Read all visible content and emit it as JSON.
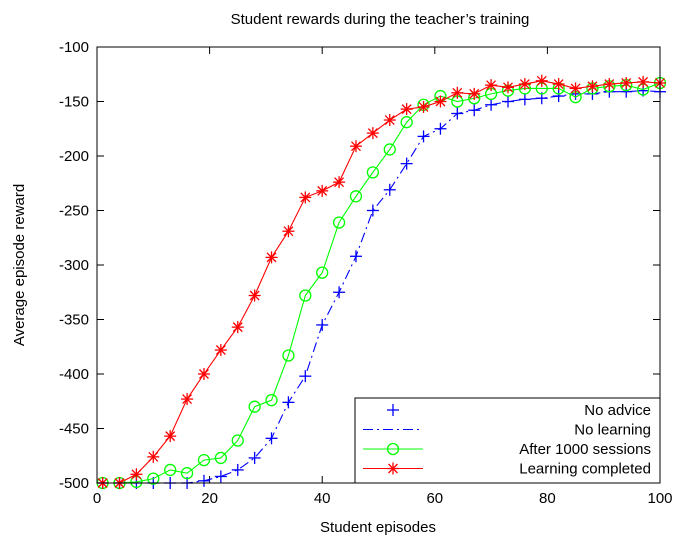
{
  "chart_data": {
    "type": "line",
    "title": "Student rewards during the teacher’s training",
    "xlabel": "Student episodes",
    "ylabel": "Average episode reward",
    "xlim": [
      0,
      100
    ],
    "ylim": [
      -500,
      -100
    ],
    "xticks": [
      0,
      20,
      40,
      60,
      80,
      100
    ],
    "yticks": [
      -100,
      -150,
      -200,
      -250,
      -300,
      -350,
      -400,
      -450,
      -500
    ],
    "legend_position": "bottom-right",
    "series": [
      {
        "name": "No advice",
        "color": "#0000ff",
        "marker": "plus",
        "line": "none",
        "x": [
          1,
          4,
          7,
          10,
          13,
          16,
          19,
          22,
          25,
          28,
          31,
          34,
          37,
          40,
          43,
          46,
          49,
          52,
          55,
          58,
          61,
          64,
          67,
          70,
          73,
          76,
          79,
          82,
          85,
          88,
          91,
          94,
          97,
          100
        ],
        "y": [
          -500,
          -500,
          -500,
          -500,
          -500,
          -500,
          -498,
          -494,
          -488,
          -477,
          -459,
          -426,
          -402,
          -355,
          -325,
          -292,
          -250,
          -231,
          -207,
          -182,
          -175,
          -161,
          -158,
          -153,
          -150,
          -148,
          -147,
          -145,
          -143,
          -143,
          -141,
          -141,
          -140,
          -141
        ]
      },
      {
        "name": "No learning",
        "color": "#0000ff",
        "marker": "none",
        "line": "dashdot",
        "x": [
          1,
          4,
          7,
          10,
          13,
          16,
          19,
          22,
          25,
          28,
          31,
          34,
          37,
          40,
          43,
          46,
          49,
          52,
          55,
          58,
          61,
          64,
          67,
          70,
          73,
          76,
          79,
          82,
          85,
          88,
          91,
          94,
          97,
          100
        ],
        "y": [
          -500,
          -500,
          -500,
          -500,
          -500,
          -500,
          -498,
          -494,
          -488,
          -477,
          -459,
          -426,
          -402,
          -355,
          -325,
          -292,
          -250,
          -231,
          -207,
          -182,
          -175,
          -161,
          -158,
          -153,
          -150,
          -148,
          -147,
          -145,
          -143,
          -143,
          -141,
          -141,
          -140,
          -141
        ]
      },
      {
        "name": "After 1000 sessions",
        "color": "#00ff00",
        "marker": "circle",
        "line": "solid",
        "x": [
          1,
          4,
          7,
          10,
          13,
          16,
          19,
          22,
          25,
          28,
          31,
          34,
          37,
          40,
          43,
          46,
          49,
          52,
          55,
          58,
          61,
          64,
          67,
          70,
          73,
          76,
          79,
          82,
          85,
          88,
          91,
          94,
          97,
          100
        ],
        "y": [
          -500,
          -500,
          -499,
          -496,
          -488,
          -491,
          -479,
          -477,
          -461,
          -430,
          -424,
          -383,
          -328,
          -307,
          -261,
          -237,
          -215,
          -194,
          -169,
          -153,
          -145,
          -150,
          -147,
          -143,
          -140,
          -138,
          -138,
          -138,
          -146,
          -138,
          -136,
          -135,
          -139,
          -133
        ]
      },
      {
        "name": "Learning completed",
        "color": "#ff0000",
        "marker": "star",
        "line": "solid",
        "x": [
          1,
          4,
          7,
          10,
          13,
          16,
          19,
          22,
          25,
          28,
          31,
          34,
          37,
          40,
          43,
          46,
          49,
          52,
          55,
          58,
          61,
          64,
          67,
          70,
          73,
          76,
          79,
          82,
          85,
          88,
          91,
          94,
          97,
          100
        ],
        "y": [
          -500,
          -500,
          -492,
          -476,
          -457,
          -423,
          -400,
          -378,
          -357,
          -328,
          -293,
          -269,
          -238,
          -232,
          -224,
          -191,
          -179,
          -167,
          -157,
          -155,
          -150,
          -142,
          -143,
          -135,
          -137,
          -134,
          -131,
          -134,
          -138,
          -136,
          -134,
          -133,
          -132,
          -133
        ]
      }
    ]
  }
}
